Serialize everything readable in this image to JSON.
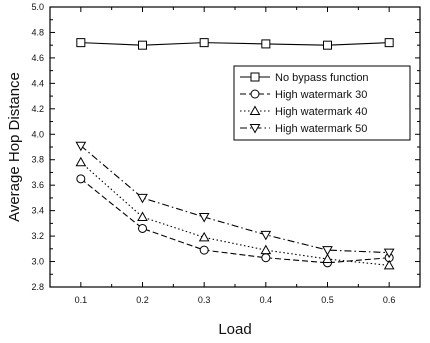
{
  "chart_data": {
    "type": "line",
    "xlabel": "Load",
    "ylabel": "Average Hop Distance",
    "xlim": [
      0.05,
      0.65
    ],
    "ylim": [
      2.8,
      5.0
    ],
    "x": [
      0.1,
      0.2,
      0.3,
      0.4,
      0.5,
      0.6
    ],
    "x_tick_labels": [
      "0.1",
      "0.2",
      "0.3",
      "0.4",
      "0.5",
      "0.6"
    ],
    "y_ticks": [
      2.8,
      3.0,
      3.2,
      3.4,
      3.6,
      3.8,
      4.0,
      4.2,
      4.4,
      4.6,
      4.8,
      5.0
    ],
    "y_tick_labels": [
      "2.8",
      "3.0",
      "3.2",
      "3.4",
      "3.6",
      "3.8",
      "4.0",
      "4.2",
      "4.4",
      "4.6",
      "4.8",
      "5.0"
    ],
    "legend_position": "top-right, inside plot",
    "grid": false,
    "series": [
      {
        "name": "No bypass function",
        "marker": "square",
        "line": "solid",
        "values": [
          4.72,
          4.7,
          4.72,
          4.71,
          4.7,
          4.72
        ]
      },
      {
        "name": "High watermark 30",
        "marker": "circle",
        "line": "dashed",
        "values": [
          3.65,
          3.26,
          3.09,
          3.03,
          2.99,
          3.03
        ]
      },
      {
        "name": "High watermark 40",
        "marker": "triangle-up",
        "line": "dotted",
        "values": [
          3.78,
          3.35,
          3.19,
          3.09,
          3.02,
          2.97
        ]
      },
      {
        "name": "High watermark 50",
        "marker": "triangle-down",
        "line": "dashdot",
        "values": [
          3.91,
          3.5,
          3.35,
          3.21,
          3.09,
          3.07
        ]
      }
    ]
  }
}
